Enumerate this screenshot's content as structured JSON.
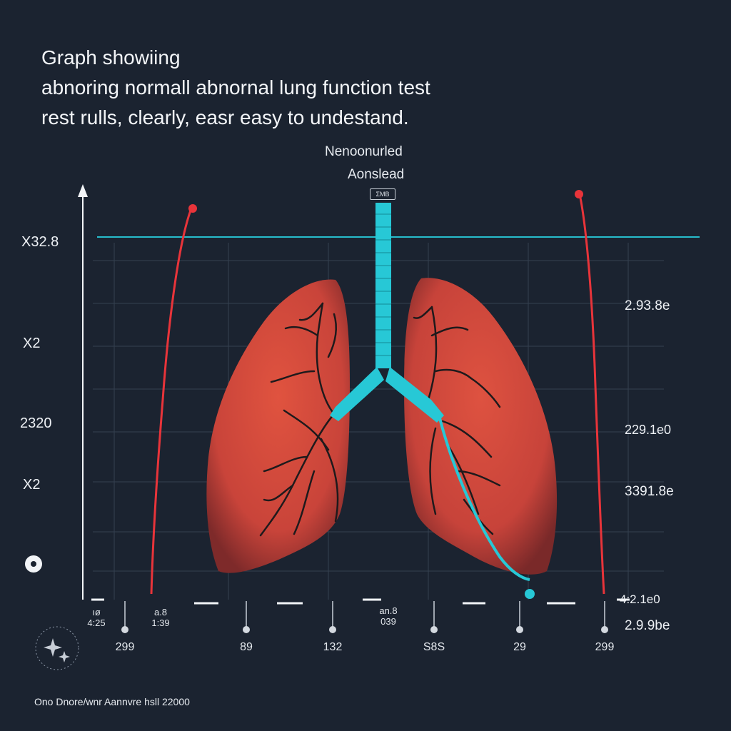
{
  "title": {
    "line1": "Graph showiing",
    "line2": "abnoring normall abnornal lung function test",
    "line3": "rest rulls, clearly, easr easy to undestand."
  },
  "center_labels": {
    "top": "Nenoonurled",
    "bottom": "Aonslead",
    "box": "ΣΜΒ"
  },
  "left_axis_labels": [
    "X32.8",
    "X2",
    "2320",
    "X2"
  ],
  "right_axis_labels": [
    "2.93.8e",
    "229.1e0",
    "3391.8e",
    "4:2.1e0",
    "2.9.9be"
  ],
  "bottom_labels_top": [
    "ıø 4:25",
    "a.8 1:39",
    "an.8 039"
  ],
  "bottom_labels": [
    "299",
    "89",
    "132",
    "S8S",
    "29",
    "299"
  ],
  "footer": "Ono Dnore/wnr Aannvre hsll 22000",
  "colors": {
    "background": "#1b2330",
    "lung": "#d94a3f",
    "airway": "#27c8d6",
    "red_line": "#e8343a",
    "grid": "#3a4655"
  },
  "icons": [
    "up-arrow-icon",
    "ai-sparkle-icon",
    "circle-marker-icon"
  ]
}
